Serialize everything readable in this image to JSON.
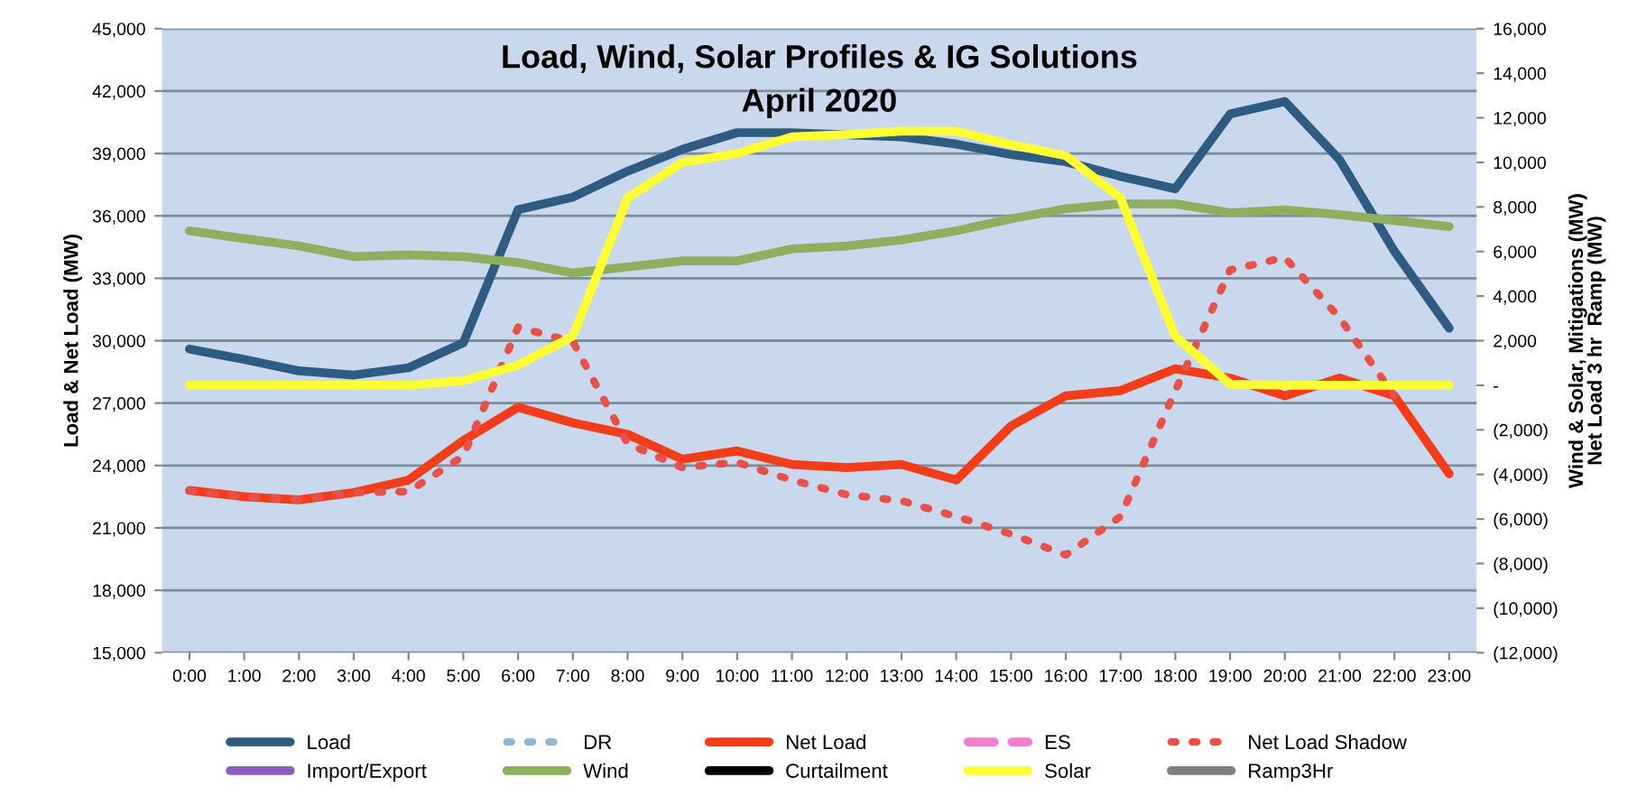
{
  "chart_data": {
    "type": "line",
    "title": "Load, Wind, Solar Profiles & IG Solutions",
    "subtitle": "April 2020",
    "ylabel": "Load & Net Load (MW)",
    "y2label": "Wind & Solar, Mitigations (MW)\nNet Load 3 hr  Ramp (MW)",
    "categories": [
      "0:00",
      "1:00",
      "2:00",
      "3:00",
      "4:00",
      "5:00",
      "6:00",
      "7:00",
      "8:00",
      "9:00",
      "10:00",
      "11:00",
      "12:00",
      "13:00",
      "14:00",
      "15:00",
      "16:00",
      "17:00",
      "18:00",
      "19:00",
      "20:00",
      "21:00",
      "22:00",
      "23:00"
    ],
    "ylim": [
      15000,
      45000
    ],
    "yticks": [
      {
        "value": 15000,
        "label": "15,000"
      },
      {
        "value": 18000,
        "label": "18,000"
      },
      {
        "value": 21000,
        "label": "21,000"
      },
      {
        "value": 24000,
        "label": "24,000"
      },
      {
        "value": 27000,
        "label": "27,000"
      },
      {
        "value": 30000,
        "label": "30,000"
      },
      {
        "value": 33000,
        "label": "33,000"
      },
      {
        "value": 36000,
        "label": "36,000"
      },
      {
        "value": 39000,
        "label": "39,000"
      },
      {
        "value": 42000,
        "label": "42,000"
      },
      {
        "value": 45000,
        "label": "45,000"
      }
    ],
    "y2lim": [
      -12000,
      16000
    ],
    "y2ticks": [
      {
        "value": -12000,
        "label": "(12,000)"
      },
      {
        "value": -10000,
        "label": "(10,000)"
      },
      {
        "value": -8000,
        "label": "(8,000)"
      },
      {
        "value": -6000,
        "label": "(6,000)"
      },
      {
        "value": -4000,
        "label": "(4,000)"
      },
      {
        "value": -2000,
        "label": "(2,000)"
      },
      {
        "value": 0,
        "label": "-"
      },
      {
        "value": 2000,
        "label": "2,000"
      },
      {
        "value": 4000,
        "label": "4,000"
      },
      {
        "value": 6000,
        "label": "6,000"
      },
      {
        "value": 8000,
        "label": "8,000"
      },
      {
        "value": 10000,
        "label": "10,000"
      },
      {
        "value": 12000,
        "label": "12,000"
      },
      {
        "value": 14000,
        "label": "14,000"
      },
      {
        "value": 16000,
        "label": "16,000"
      }
    ],
    "grid": "y",
    "legend": "bottom",
    "marker": "none",
    "series": [
      {
        "name": "Load",
        "color": "#2e5b82",
        "line_style": "solid",
        "values": [
          29600,
          29100,
          28550,
          28350,
          28700,
          29900,
          36300,
          36900,
          38150,
          39200,
          40000,
          40000,
          39900,
          39800,
          39450,
          38950,
          38600,
          37900,
          37300,
          40900,
          41500,
          38700,
          34300,
          30600
        ]
      },
      {
        "name": "DR",
        "color": "#8fb8d8",
        "line_style": "dotted",
        "values": [
          null,
          null,
          null,
          null,
          null,
          null,
          null,
          null,
          null,
          null,
          null,
          null,
          null,
          null,
          null,
          null,
          null,
          null,
          null,
          null,
          null,
          null,
          null,
          null
        ]
      },
      {
        "name": "Net Load",
        "color": "#f23c1a",
        "line_style": "solid",
        "values": [
          22800,
          22500,
          22350,
          22700,
          23300,
          25200,
          26800,
          26050,
          25500,
          24300,
          24700,
          24050,
          23900,
          24050,
          23300,
          25900,
          27350,
          27600,
          28650,
          28200,
          27350,
          28200,
          27350,
          23600
        ]
      },
      {
        "name": "ES",
        "color": "#f07fd0",
        "line_style": "dashed",
        "values": [
          null,
          null,
          null,
          null,
          null,
          null,
          null,
          null,
          null,
          null,
          null,
          null,
          null,
          null,
          null,
          null,
          null,
          null,
          null,
          null,
          null,
          null,
          null,
          null
        ]
      },
      {
        "name": "Net Load Shadow",
        "color": "#e8504a",
        "line_style": "dotted",
        "values": [
          22800,
          22500,
          22350,
          22700,
          22750,
          24450,
          30650,
          29950,
          25050,
          23900,
          24150,
          23300,
          22600,
          22300,
          21550,
          20700,
          19700,
          21550,
          27600,
          33400,
          34000,
          31100,
          27350,
          null
        ]
      },
      {
        "name": "Import/Export",
        "color": "#8c5fbf",
        "line_style": "solid",
        "values": [
          null,
          null,
          null,
          null,
          null,
          null,
          null,
          null,
          null,
          null,
          null,
          null,
          null,
          null,
          null,
          null,
          null,
          null,
          null,
          null,
          null,
          null,
          null,
          null
        ]
      },
      {
        "name": "Wind",
        "color": "#8fae5e",
        "line_style": "solid",
        "axis": "y2",
        "values": [
          6930,
          6580,
          6250,
          5770,
          5850,
          5770,
          5500,
          5040,
          5310,
          5580,
          5580,
          6120,
          6250,
          6520,
          6930,
          7470,
          7920,
          8140,
          8140,
          7740,
          7870,
          7650,
          7390,
          7120
        ]
      },
      {
        "name": "Curtailment",
        "color": "#000000",
        "line_style": "solid",
        "axis": "y2",
        "values": [
          null,
          null,
          null,
          null,
          null,
          null,
          null,
          null,
          null,
          null,
          null,
          null,
          null,
          null,
          null,
          null,
          null,
          null,
          null,
          null,
          null,
          null,
          null,
          null
        ]
      },
      {
        "name": "Solar",
        "color": "#ffff33",
        "line_style": "solid",
        "axis": "y2",
        "values": [
          0,
          0,
          0,
          0,
          0,
          200,
          900,
          2200,
          8400,
          10000,
          10400,
          11150,
          11250,
          11400,
          11400,
          10800,
          10300,
          8400,
          2200,
          50,
          0,
          0,
          0,
          0
        ]
      },
      {
        "name": "Ramp3Hr",
        "color": "#808080",
        "line_style": "solid",
        "axis": "y2",
        "values": [
          null,
          null,
          null,
          null,
          null,
          null,
          null,
          null,
          null,
          null,
          null,
          null,
          null,
          null,
          null,
          null,
          null,
          null,
          null,
          null,
          null,
          null,
          null,
          null
        ]
      }
    ]
  }
}
